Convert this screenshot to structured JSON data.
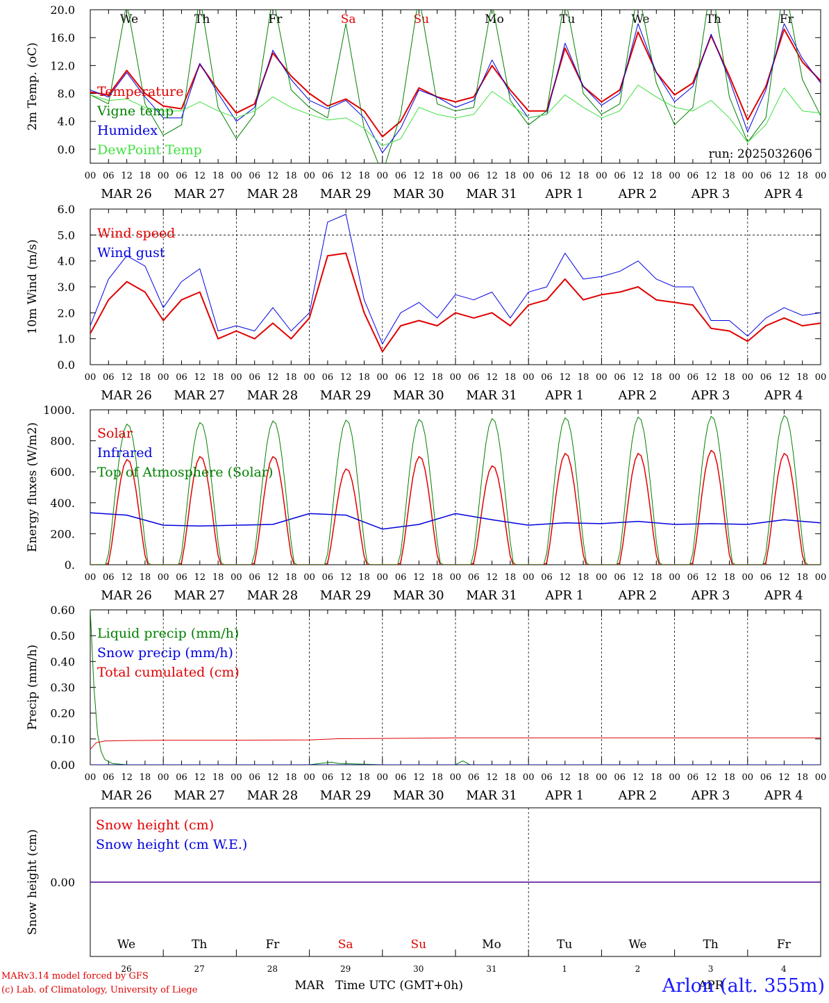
{
  "x_axis": {
    "hour_ticks": [
      "00",
      "06",
      "12",
      "18"
    ],
    "end_tick": "00",
    "dates": [
      "MAR 26",
      "MAR 27",
      "MAR 28",
      "MAR 29",
      "MAR 30",
      "MAR 31",
      "APR  1",
      "APR  2",
      "APR  3",
      "APR  4"
    ],
    "weekdays": [
      "We",
      "Th",
      "Fr",
      "Sa",
      "Su",
      "Mo",
      "Tu",
      "We",
      "Th",
      "Fr"
    ],
    "weekday_colors": [
      "#000000",
      "#000000",
      "#000000",
      "#e00000",
      "#e00000",
      "#000000",
      "#000000",
      "#000000",
      "#000000",
      "#000000"
    ],
    "day_numbers": [
      "26",
      "27",
      "28",
      "29",
      "30",
      "31",
      "1",
      "2",
      "3",
      "4"
    ],
    "month_labels": [
      {
        "text": "MAR",
        "day": 3
      },
      {
        "text": "APR",
        "day": 8.5
      }
    ],
    "xlabel": "Time UTC (GMT+0h)"
  },
  "chart_data": [
    {
      "type": "line",
      "panel": "temperature",
      "ylabel": "2m Temp. (oC)",
      "ylim": [
        -2,
        20
      ],
      "yticks": [
        0,
        4,
        8,
        12,
        16,
        20
      ],
      "ytick_labels": [
        "0.0",
        "4.0",
        "8.0",
        "12.0",
        "16.0",
        "20.0"
      ],
      "annotation": "run: 2025032606",
      "x_unit": "days since MAR 26 00 UTC",
      "series": [
        {
          "name": "Temperature",
          "color": "#e00000",
          "width": 2,
          "x": [
            0,
            0.25,
            0.5,
            0.75,
            1,
            1.25,
            1.5,
            1.75,
            2,
            2.25,
            2.5,
            2.75,
            3,
            3.25,
            3.5,
            3.75,
            4,
            4.25,
            4.5,
            4.75,
            5,
            5.25,
            5.5,
            5.75,
            6,
            6.25,
            6.5,
            6.75,
            7,
            7.25,
            7.5,
            7.75,
            8,
            8.25,
            8.5,
            8.75,
            9,
            9.25,
            9.5,
            9.75,
            10
          ],
          "y": [
            8.2,
            7.8,
            11.3,
            8.0,
            6.2,
            5.8,
            12.2,
            8.5,
            5.2,
            6.5,
            13.8,
            10.5,
            8.0,
            6.2,
            7.2,
            5.5,
            1.8,
            4.0,
            8.8,
            7.5,
            6.8,
            7.5,
            12.0,
            8.5,
            5.5,
            5.5,
            14.5,
            9.0,
            6.8,
            8.5,
            16.8,
            11.0,
            7.8,
            9.5,
            16.3,
            10.5,
            4.2,
            9.0,
            17.2,
            12.5,
            9.8
          ]
        },
        {
          "name": "Vigne temp",
          "color": "#008000",
          "width": 1,
          "x": [
            0,
            0.25,
            0.5,
            0.75,
            1,
            1.25,
            1.5,
            1.75,
            2,
            2.25,
            2.5,
            2.75,
            3,
            3.25,
            3.5,
            3.75,
            4,
            4.25,
            4.5,
            4.75,
            5,
            5.25,
            5.5,
            5.75,
            6,
            6.25,
            6.5,
            6.75,
            7,
            7.25,
            7.5,
            7.75,
            8,
            8.25,
            8.5,
            8.75,
            9,
            9.25,
            9.5,
            9.75,
            10
          ],
          "y": [
            7.8,
            6.5,
            21,
            6.5,
            2.0,
            3.5,
            22,
            6.0,
            1.5,
            5.0,
            22,
            8.5,
            6.0,
            4.5,
            18,
            3.0,
            -3.5,
            5.0,
            22,
            6.5,
            5.5,
            6.0,
            21,
            7.0,
            3.5,
            5.5,
            22,
            8.0,
            5.0,
            6.5,
            23,
            9.5,
            3.5,
            6.0,
            24,
            7.5,
            1.0,
            4.5,
            24,
            10,
            4.8
          ]
        },
        {
          "name": "Humidex",
          "color": "#0000e0",
          "width": 1,
          "x": [
            0,
            0.25,
            0.5,
            0.75,
            1,
            1.25,
            1.5,
            1.75,
            2,
            2.25,
            2.5,
            2.75,
            3,
            3.25,
            3.5,
            3.75,
            4,
            4.25,
            4.5,
            4.75,
            5,
            5.25,
            5.5,
            5.75,
            6,
            6.25,
            6.5,
            6.75,
            7,
            7.25,
            7.5,
            7.75,
            8,
            8.25,
            8.5,
            8.75,
            9,
            9.25,
            9.5,
            9.75,
            10
          ],
          "y": [
            8.5,
            7.5,
            11.0,
            7.5,
            4.5,
            4.5,
            12.3,
            8.0,
            4.0,
            6.0,
            14.2,
            10.0,
            7.0,
            5.8,
            7.0,
            4.5,
            -0.5,
            3.0,
            8.5,
            7.5,
            6.0,
            7.0,
            12.8,
            8.0,
            4.5,
            5.0,
            15.2,
            9.0,
            6.3,
            8.0,
            18.0,
            11.0,
            6.8,
            9.0,
            16.5,
            10.0,
            2.5,
            8.5,
            18.0,
            13.0,
            9.5
          ]
        },
        {
          "name": "DewPoint Temp",
          "color": "#40e040",
          "width": 1,
          "x": [
            0,
            0.25,
            0.5,
            0.75,
            1,
            1.25,
            1.5,
            1.75,
            2,
            2.25,
            2.5,
            2.75,
            3,
            3.25,
            3.5,
            3.75,
            4,
            4.25,
            4.5,
            4.75,
            5,
            5.25,
            5.5,
            5.75,
            6,
            6.25,
            6.5,
            6.75,
            7,
            7.25,
            7.5,
            7.75,
            8,
            8.25,
            8.5,
            8.75,
            9,
            9.25,
            9.5,
            9.75,
            10
          ],
          "y": [
            7.8,
            7.0,
            7.2,
            6.0,
            5.5,
            5.5,
            6.8,
            5.5,
            4.5,
            5.5,
            7.5,
            6.0,
            5.0,
            4.2,
            4.5,
            3.0,
            0.5,
            1.5,
            6.0,
            5.0,
            4.5,
            5.0,
            8.3,
            6.5,
            4.5,
            5.0,
            7.8,
            6.0,
            4.5,
            5.5,
            9.2,
            7.5,
            6.0,
            5.5,
            7.0,
            4.5,
            1.0,
            3.5,
            8.8,
            5.5,
            5.2
          ]
        }
      ],
      "weekday_labels": true
    },
    {
      "type": "line",
      "panel": "wind",
      "ylabel": "10m Wind (m/s)",
      "ylim": [
        0,
        6
      ],
      "yticks": [
        0,
        1,
        2,
        3,
        4,
        5,
        6
      ],
      "ytick_labels": [
        "0.0",
        "1.0",
        "2.0",
        "3.0",
        "4.0",
        "5.0",
        "6.0"
      ],
      "dashed_level": 5,
      "series": [
        {
          "name": "Wind speed",
          "color": "#e00000",
          "width": 2,
          "x": [
            0,
            0.25,
            0.5,
            0.75,
            1,
            1.25,
            1.5,
            1.75,
            2,
            2.25,
            2.5,
            2.75,
            3,
            3.25,
            3.5,
            3.75,
            4,
            4.25,
            4.5,
            4.75,
            5,
            5.25,
            5.5,
            5.75,
            6,
            6.25,
            6.5,
            6.75,
            7,
            7.25,
            7.5,
            7.75,
            8,
            8.25,
            8.5,
            8.75,
            9,
            9.25,
            9.5,
            9.75,
            10
          ],
          "y": [
            1.2,
            2.5,
            3.2,
            2.8,
            1.7,
            2.5,
            2.8,
            1.0,
            1.3,
            1.0,
            1.6,
            1.0,
            1.8,
            4.2,
            4.3,
            2.0,
            0.5,
            1.5,
            1.7,
            1.5,
            2.0,
            1.8,
            2.0,
            1.5,
            2.3,
            2.5,
            3.3,
            2.5,
            2.7,
            2.8,
            3.0,
            2.5,
            2.4,
            2.3,
            1.4,
            1.3,
            0.9,
            1.5,
            1.8,
            1.5,
            1.6
          ]
        },
        {
          "name": "Wind gust",
          "color": "#0000e0",
          "width": 1,
          "x": [
            0,
            0.25,
            0.5,
            0.75,
            1,
            1.25,
            1.5,
            1.75,
            2,
            2.25,
            2.5,
            2.75,
            3,
            3.25,
            3.5,
            3.75,
            4,
            4.25,
            4.5,
            4.75,
            5,
            5.25,
            5.5,
            5.75,
            6,
            6.25,
            6.5,
            6.75,
            7,
            7.25,
            7.5,
            7.75,
            8,
            8.25,
            8.5,
            8.75,
            9,
            9.25,
            9.5,
            9.75,
            10
          ],
          "y": [
            1.5,
            3.3,
            4.2,
            3.8,
            2.2,
            3.2,
            3.7,
            1.3,
            1.5,
            1.3,
            2.2,
            1.3,
            2.0,
            5.5,
            5.8,
            2.5,
            0.8,
            2.0,
            2.4,
            1.8,
            2.7,
            2.5,
            2.8,
            1.8,
            2.8,
            3.0,
            4.3,
            3.3,
            3.4,
            3.6,
            4.0,
            3.3,
            3.0,
            3.0,
            1.7,
            1.7,
            1.1,
            1.8,
            2.2,
            1.9,
            2.0
          ]
        }
      ]
    },
    {
      "type": "line",
      "panel": "energy",
      "ylabel": "Energy fluxes (W/m2)",
      "ylim": [
        0,
        1000
      ],
      "yticks": [
        0,
        200,
        400,
        600,
        800,
        1000
      ],
      "ytick_labels": [
        "0.",
        "200.",
        "400.",
        "600.",
        "800.",
        "1000."
      ],
      "series": [
        {
          "name": "Solar",
          "color": "#e00000",
          "width": 1.5,
          "kind": "diurnal",
          "peaks": [
            680,
            700,
            700,
            620,
            700,
            640,
            720,
            720,
            740,
            720
          ],
          "rise": 0.24,
          "set": 0.78
        },
        {
          "name": "Infrared",
          "color": "#0000e0",
          "width": 1.5,
          "x": [
            0,
            0.5,
            1,
            1.5,
            2,
            2.5,
            3,
            3.5,
            4,
            4.5,
            5,
            5.5,
            6,
            6.5,
            7,
            7.5,
            8,
            8.5,
            9,
            9.5,
            10
          ],
          "y": [
            335,
            320,
            255,
            250,
            255,
            260,
            330,
            320,
            230,
            260,
            330,
            290,
            255,
            270,
            265,
            280,
            260,
            265,
            260,
            290,
            270
          ]
        },
        {
          "name": "Top of Atmosphere (Solar)",
          "color": "#008000",
          "width": 1,
          "kind": "diurnal",
          "peaks": [
            910,
            920,
            930,
            935,
            940,
            945,
            950,
            955,
            960,
            965
          ],
          "rise": 0.22,
          "set": 0.8
        }
      ]
    },
    {
      "type": "line",
      "panel": "precip",
      "ylabel": "Precip (mm/h)",
      "ylim": [
        0,
        0.6
      ],
      "yticks": [
        0,
        0.1,
        0.2,
        0.3,
        0.4,
        0.5,
        0.6
      ],
      "ytick_labels": [
        "0.00",
        "0.10",
        "0.20",
        "0.30",
        "0.40",
        "0.50",
        "0.60"
      ],
      "series": [
        {
          "name": "Liquid precip (mm/h)",
          "color": "#008000",
          "width": 1,
          "x": [
            0,
            0.05,
            0.1,
            0.15,
            0.2,
            0.3,
            0.5,
            1,
            3,
            3.3,
            3.4,
            4,
            5,
            5.1,
            5.2,
            10
          ],
          "y": [
            0.6,
            0.3,
            0.12,
            0.05,
            0.02,
            0.005,
            0,
            0,
            0,
            0.01,
            0.005,
            0,
            0,
            0.015,
            0,
            0
          ]
        },
        {
          "name": "Snow precip (mm/h)",
          "color": "#0000e0",
          "width": 1,
          "x": [
            0,
            10
          ],
          "y": [
            0,
            0
          ]
        },
        {
          "name": "Total cumulated (cm)",
          "color": "#e00000",
          "width": 1,
          "x": [
            0,
            0.08,
            0.2,
            0.5,
            1,
            2,
            3,
            3.4,
            4,
            5,
            10
          ],
          "y": [
            0.06,
            0.085,
            0.092,
            0.094,
            0.095,
            0.095,
            0.096,
            0.101,
            0.102,
            0.104,
            0.104
          ]
        }
      ]
    },
    {
      "type": "line",
      "panel": "snow",
      "ylabel": "Snow height (cm)",
      "ylim": [
        -1,
        1
      ],
      "yticks": [
        0
      ],
      "ytick_labels": [
        "0.00"
      ],
      "series": [
        {
          "name": "Snow height (cm)",
          "color": "#e00000",
          "width": 1.5,
          "x": [
            0,
            10
          ],
          "y": [
            0,
            0
          ]
        },
        {
          "name": "Snow height (cm W.E.)",
          "color": "#0000e0",
          "width": 1,
          "x": [
            0,
            10
          ],
          "y": [
            0,
            0
          ]
        }
      ]
    }
  ],
  "footer": {
    "model_line": "MARv3.14 model forced by GFS",
    "lab_line": "(c) Lab. of Climatology, University of Liege",
    "station": "Arlon (alt. 355m)"
  }
}
